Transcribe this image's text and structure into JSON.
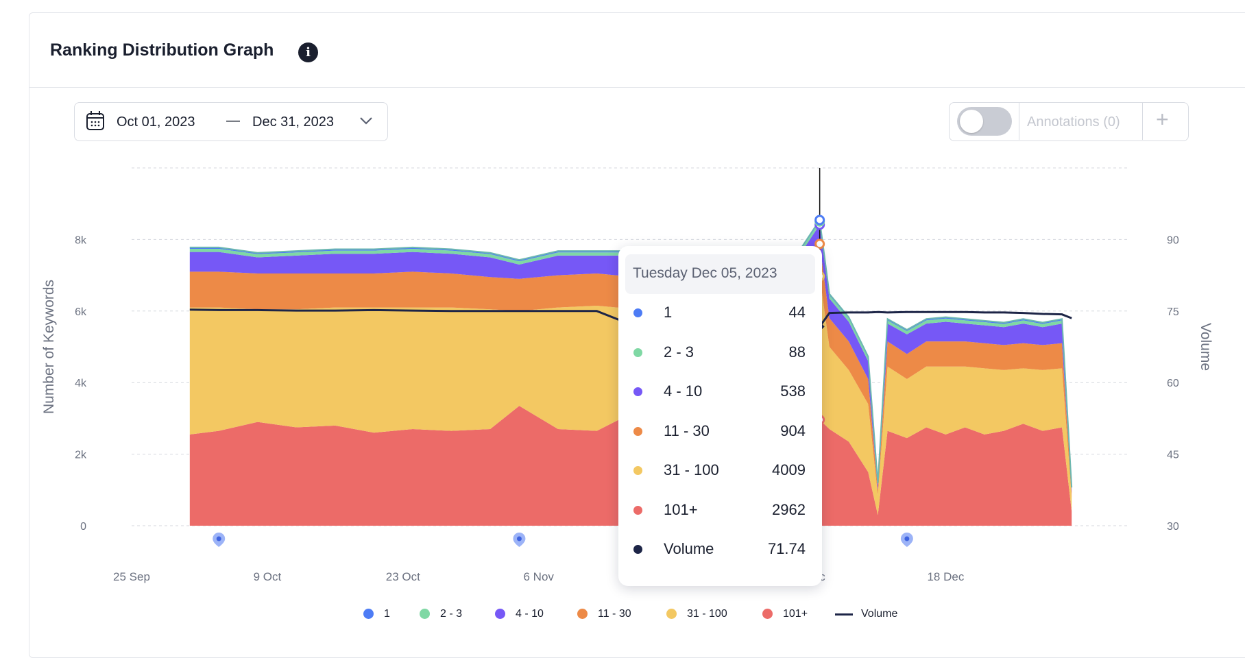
{
  "header": {
    "title": "Ranking Distribution Graph",
    "info_icon": "i"
  },
  "date_range": {
    "from": "Oct 01, 2023",
    "separator": "—",
    "to": "Dec 31, 2023"
  },
  "annotations": {
    "label": "Annotations (0)",
    "toggle_on": false,
    "add_label": "+"
  },
  "colors": {
    "s1": "#4d7cf5",
    "s2_3": "#7fd8a4",
    "s4_10": "#7658f6",
    "s11_30": "#ed8a47",
    "s31_100": "#f3c862",
    "s101": "#ec6b68",
    "volume": "#1d2547"
  },
  "chart_data": {
    "type": "area",
    "stacked": true,
    "xlabel": "",
    "ylabel": "Number of Keywords",
    "y2label": "Volume",
    "x_ticks": [
      "25 Sep",
      "9 Oct",
      "23 Oct",
      "6 Nov",
      "4 Dec",
      "18 Dec"
    ],
    "y_ticks": [
      "0",
      "2k",
      "4k",
      "6k",
      "8k"
    ],
    "y2_ticks": [
      "30",
      "45",
      "60",
      "75",
      "90"
    ],
    "ylim": [
      0,
      10000
    ],
    "y2lim": [
      30,
      105
    ],
    "grid": true,
    "legend_position": "bottom",
    "x": [
      "2023-10-01",
      "2023-10-04",
      "2023-10-08",
      "2023-10-12",
      "2023-10-16",
      "2023-10-20",
      "2023-10-24",
      "2023-10-28",
      "2023-11-01",
      "2023-11-04",
      "2023-11-08",
      "2023-11-12",
      "2023-11-16",
      "2023-11-20",
      "2023-11-24",
      "2023-11-28",
      "2023-12-01",
      "2023-12-03",
      "2023-12-05",
      "2023-12-06",
      "2023-12-08",
      "2023-12-10",
      "2023-12-11",
      "2023-12-12",
      "2023-12-14",
      "2023-12-16",
      "2023-12-18",
      "2023-12-20",
      "2023-12-22",
      "2023-12-24",
      "2023-12-26",
      "2023-12-28",
      "2023-12-30",
      "2023-12-31"
    ],
    "series": [
      {
        "name": "101+",
        "color": "#ec6b68",
        "values": [
          2550,
          2650,
          2900,
          2750,
          2800,
          2600,
          2700,
          2650,
          2700,
          3350,
          2700,
          2650,
          3200,
          3300,
          3300,
          3150,
          3200,
          3250,
          2962,
          2700,
          2350,
          1500,
          300,
          2650,
          2450,
          2750,
          2550,
          2750,
          2550,
          2650,
          2850,
          2650,
          2750,
          400
        ]
      },
      {
        "name": "31 - 100",
        "color": "#f3c862",
        "values": [
          3550,
          3450,
          3150,
          3300,
          3300,
          3500,
          3400,
          3450,
          3350,
          2650,
          3400,
          3500,
          2850,
          2750,
          2750,
          2900,
          2900,
          2900,
          4009,
          2300,
          2000,
          1900,
          550,
          1800,
          1650,
          1700,
          1900,
          1700,
          1850,
          1700,
          1550,
          1700,
          1650,
          380
        ]
      },
      {
        "name": "11 - 30",
        "color": "#ed8a47",
        "values": [
          1000,
          1000,
          1000,
          1000,
          950,
          950,
          1000,
          950,
          900,
          900,
          900,
          900,
          900,
          900,
          900,
          900,
          900,
          900,
          904,
          800,
          800,
          700,
          150,
          700,
          700,
          700,
          700,
          700,
          700,
          700,
          700,
          700,
          700,
          150
        ]
      },
      {
        "name": "4 - 10",
        "color": "#7658f6",
        "values": [
          550,
          550,
          450,
          500,
          550,
          550,
          550,
          550,
          550,
          400,
          550,
          500,
          600,
          600,
          600,
          550,
          550,
          550,
          538,
          550,
          550,
          500,
          150,
          500,
          550,
          500,
          550,
          500,
          500,
          500,
          550,
          500,
          550,
          100
        ]
      },
      {
        "name": "2 - 3",
        "color": "#7fd8a4",
        "values": [
          90,
          90,
          90,
          90,
          90,
          90,
          90,
          90,
          90,
          90,
          90,
          90,
          90,
          90,
          90,
          90,
          90,
          90,
          88,
          90,
          90,
          90,
          30,
          90,
          90,
          90,
          90,
          90,
          90,
          90,
          90,
          90,
          90,
          30
        ]
      },
      {
        "name": "1",
        "color": "#4d7cf5",
        "values": [
          40,
          40,
          40,
          40,
          40,
          40,
          40,
          40,
          40,
          40,
          40,
          40,
          40,
          40,
          40,
          40,
          40,
          40,
          44,
          40,
          40,
          40,
          10,
          40,
          40,
          40,
          40,
          40,
          40,
          40,
          40,
          40,
          40,
          10
        ]
      }
    ],
    "volume": {
      "name": "Volume",
      "color": "#1d2547",
      "values": [
        75.3,
        75.2,
        75.2,
        75.1,
        75.1,
        75.2,
        75.1,
        75.0,
        75.0,
        75.0,
        75.0,
        75.0,
        71.8,
        71.8,
        71.8,
        71.8,
        71.8,
        71.7,
        71.74,
        74.6,
        74.7,
        74.7,
        74.8,
        74.7,
        74.8,
        74.8,
        74.8,
        74.8,
        74.7,
        74.7,
        74.6,
        74.4,
        74.3,
        73.5
      ]
    },
    "hover": {
      "index": 18,
      "date_label": "Tuesday Dec 05, 2023"
    },
    "markers_x": [
      "2023-10-04",
      "2023-11-04",
      "2023-12-14"
    ]
  },
  "tooltip": {
    "date": "Tuesday Dec 05, 2023",
    "rows": [
      {
        "name": "1",
        "value": "44",
        "color": "#4d7cf5"
      },
      {
        "name": "2 - 3",
        "value": "88",
        "color": "#7fd8a4"
      },
      {
        "name": "4 - 10",
        "value": "538",
        "color": "#7658f6"
      },
      {
        "name": "11 - 30",
        "value": "904",
        "color": "#ed8a47"
      },
      {
        "name": "31 - 100",
        "value": "4009",
        "color": "#f3c862"
      },
      {
        "name": "101+",
        "value": "2962",
        "color": "#ec6b68"
      },
      {
        "name": "Volume",
        "value": "71.74",
        "color": "#1d2547"
      }
    ]
  },
  "legend": [
    {
      "name": "1",
      "color": "#4d7cf5",
      "kind": "dot"
    },
    {
      "name": "2 - 3",
      "color": "#7fd8a4",
      "kind": "dot"
    },
    {
      "name": "4 - 10",
      "color": "#7658f6",
      "kind": "dot"
    },
    {
      "name": "11 - 30",
      "color": "#ed8a47",
      "kind": "dot"
    },
    {
      "name": "31 - 100",
      "color": "#f3c862",
      "kind": "dot"
    },
    {
      "name": "101+",
      "color": "#ec6b68",
      "kind": "dot"
    },
    {
      "name": "Volume",
      "color": "#1d2547",
      "kind": "line"
    }
  ]
}
